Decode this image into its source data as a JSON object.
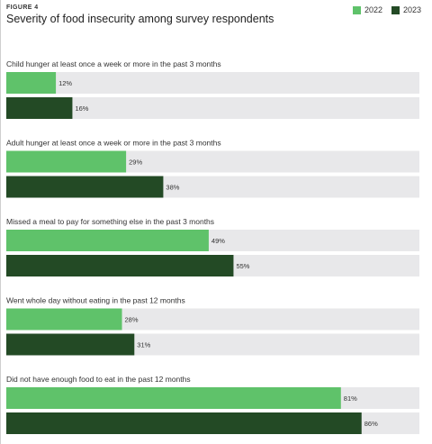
{
  "figure_label": "FIGURE 4",
  "colors": {
    "track": "#e8e8ea",
    "series_2022": "#5fc26a",
    "series_2023": "#234a25"
  },
  "chart_data": {
    "type": "bar",
    "orientation": "horizontal",
    "title": "Severity of food insecurity among survey respondents",
    "xlim": [
      0,
      100
    ],
    "value_suffix": "%",
    "grid": false,
    "legend_position": "top-right",
    "categories": [
      "Child hunger at least once a week or more in the past 3 months",
      "Adult hunger at least once a week or more in the past 3 months",
      "Missed a meal to pay for something else in the past 3 months",
      "Went whole day without eating in the past 12 months",
      "Did not have enough food to eat in the past 12 months"
    ],
    "series": [
      {
        "name": "2022",
        "values": [
          12,
          29,
          49,
          28,
          81
        ]
      },
      {
        "name": "2023",
        "values": [
          16,
          38,
          55,
          31,
          86
        ]
      }
    ]
  }
}
